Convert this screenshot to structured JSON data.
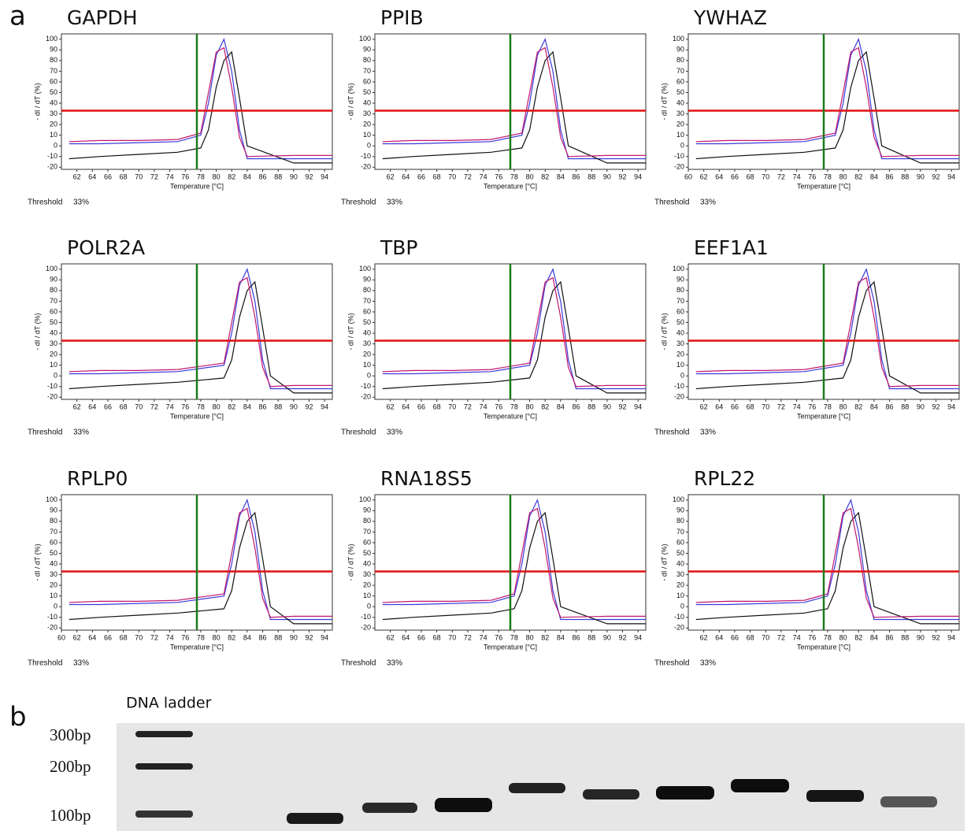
{
  "panel_labels": [
    "a",
    "b"
  ],
  "chart_data": [
    {
      "type": "line",
      "title": "GAPDH",
      "xlabel": "Temperature [°C]",
      "ylabel": "- dI / dT (%)",
      "threshold_label": "Threshold",
      "threshold": 33,
      "threshold_value_label": "33%",
      "marker_x": 77.5,
      "xlim": [
        60,
        95
      ],
      "ylim": [
        -22,
        105
      ],
      "xticks": [
        62,
        64,
        66,
        68,
        70,
        72,
        74,
        76,
        78,
        80,
        82,
        84,
        86,
        88,
        90,
        92,
        94
      ],
      "yticks": [
        -20,
        -10,
        0,
        10,
        20,
        30,
        40,
        50,
        60,
        70,
        80,
        90,
        100
      ],
      "x": [
        61,
        65,
        70,
        75,
        78,
        79,
        80,
        81,
        82,
        83,
        84,
        90,
        95
      ],
      "series": [
        {
          "color": "#3a3ad8",
          "values": [
            2,
            2,
            3,
            4,
            10,
            40,
            85,
            100,
            70,
            15,
            -12,
            -12,
            -12
          ]
        },
        {
          "color": "#111111",
          "values": [
            -12,
            -10,
            -8,
            -6,
            -2,
            15,
            55,
            80,
            88,
            45,
            0,
            -16,
            -16
          ]
        },
        {
          "color": "#c0186e",
          "values": [
            4,
            5,
            5,
            6,
            12,
            50,
            88,
            92,
            55,
            8,
            -10,
            -9,
            -9
          ]
        }
      ]
    },
    {
      "type": "line",
      "title": "PPIB",
      "xlabel": "Temperature [°C]",
      "ylabel": "- dI / dT (%)",
      "threshold_label": "Threshold",
      "threshold": 33,
      "threshold_value_label": "33%",
      "marker_x": 77.5,
      "xlim": [
        60,
        95
      ],
      "ylim": [
        -22,
        105
      ],
      "xticks": [
        62,
        64,
        66,
        68,
        70,
        72,
        74,
        76,
        78,
        80,
        82,
        84,
        86,
        88,
        90,
        92,
        94
      ],
      "yticks": [
        -20,
        -10,
        0,
        10,
        20,
        30,
        40,
        50,
        60,
        70,
        80,
        90,
        100
      ],
      "x": [
        61,
        65,
        70,
        75,
        79,
        80,
        81,
        82,
        83,
        84,
        85,
        90,
        95
      ],
      "series": [
        {
          "color": "#3a3ad8",
          "values": [
            2,
            2,
            3,
            4,
            10,
            40,
            85,
            100,
            70,
            15,
            -12,
            -12,
            -12
          ]
        },
        {
          "color": "#111111",
          "values": [
            -12,
            -10,
            -8,
            -6,
            -2,
            15,
            55,
            80,
            88,
            45,
            0,
            -16,
            -16
          ]
        },
        {
          "color": "#c0186e",
          "values": [
            4,
            5,
            5,
            6,
            12,
            50,
            88,
            92,
            55,
            8,
            -10,
            -9,
            -9
          ]
        }
      ]
    },
    {
      "type": "line",
      "title": "YWHAZ",
      "xlabel": "Temperature [°C]",
      "ylabel": "- dI / dT (%)",
      "threshold_label": "Threshold",
      "threshold": 33,
      "threshold_value_label": "33%",
      "marker_x": 77.5,
      "xlim": [
        60,
        95
      ],
      "ylim": [
        -22,
        105
      ],
      "xticks": [
        60,
        62,
        64,
        66,
        68,
        70,
        72,
        74,
        76,
        78,
        80,
        82,
        84,
        86,
        88,
        90,
        92,
        94
      ],
      "yticks": [
        -20,
        -10,
        0,
        10,
        20,
        30,
        40,
        50,
        60,
        70,
        80,
        90,
        100
      ],
      "x": [
        61,
        65,
        70,
        75,
        79,
        80,
        81,
        82,
        83,
        84,
        85,
        90,
        95
      ],
      "series": [
        {
          "color": "#3a3ad8",
          "values": [
            2,
            2,
            3,
            4,
            10,
            40,
            85,
            100,
            70,
            15,
            -12,
            -12,
            -12
          ]
        },
        {
          "color": "#111111",
          "values": [
            -12,
            -10,
            -8,
            -6,
            -2,
            15,
            55,
            80,
            88,
            45,
            0,
            -16,
            -16
          ]
        },
        {
          "color": "#c0186e",
          "values": [
            4,
            5,
            5,
            6,
            12,
            50,
            88,
            92,
            55,
            8,
            -10,
            -9,
            -9
          ]
        }
      ]
    },
    {
      "type": "line",
      "title": "POLR2A",
      "xlabel": "Temperature [°C]",
      "ylabel": "- dI / dT (%)",
      "threshold_label": "Threshold",
      "threshold": 33,
      "threshold_value_label": "33%",
      "marker_x": 77.5,
      "xlim": [
        60,
        95
      ],
      "ylim": [
        -22,
        105
      ],
      "xticks": [
        62,
        64,
        66,
        68,
        70,
        72,
        74,
        76,
        78,
        80,
        82,
        84,
        86,
        88,
        90,
        92,
        94
      ],
      "yticks": [
        -20,
        -10,
        0,
        10,
        20,
        30,
        40,
        50,
        60,
        70,
        80,
        90,
        100
      ],
      "x": [
        61,
        65,
        70,
        75,
        81,
        82,
        83,
        84,
        85,
        86,
        87,
        90,
        95
      ],
      "series": [
        {
          "color": "#3a3ad8",
          "values": [
            2,
            2,
            3,
            4,
            10,
            40,
            85,
            100,
            70,
            15,
            -12,
            -12,
            -12
          ]
        },
        {
          "color": "#111111",
          "values": [
            -12,
            -10,
            -8,
            -6,
            -2,
            15,
            55,
            80,
            88,
            45,
            0,
            -16,
            -16
          ]
        },
        {
          "color": "#c0186e",
          "values": [
            4,
            5,
            5,
            6,
            12,
            50,
            88,
            92,
            55,
            8,
            -10,
            -9,
            -9
          ]
        }
      ]
    },
    {
      "type": "line",
      "title": "TBP",
      "xlabel": "Temperature [°C]",
      "ylabel": "- dI / dT (%)",
      "threshold_label": "Threshold",
      "threshold": 33,
      "threshold_value_label": "33%",
      "marker_x": 77.5,
      "xlim": [
        60,
        95
      ],
      "ylim": [
        -22,
        105
      ],
      "xticks": [
        62,
        64,
        66,
        68,
        70,
        72,
        74,
        76,
        78,
        80,
        82,
        84,
        86,
        88,
        90,
        92,
        94
      ],
      "yticks": [
        -20,
        -10,
        0,
        10,
        20,
        30,
        40,
        50,
        60,
        70,
        80,
        90,
        100
      ],
      "x": [
        61,
        65,
        70,
        75,
        80,
        81,
        82,
        83,
        84,
        85,
        86,
        90,
        95
      ],
      "series": [
        {
          "color": "#3a3ad8",
          "values": [
            2,
            2,
            3,
            4,
            10,
            40,
            85,
            100,
            70,
            15,
            -12,
            -12,
            -12
          ]
        },
        {
          "color": "#111111",
          "values": [
            -12,
            -10,
            -8,
            -6,
            -2,
            15,
            55,
            80,
            88,
            45,
            0,
            -16,
            -16
          ]
        },
        {
          "color": "#c0186e",
          "values": [
            4,
            5,
            5,
            6,
            12,
            50,
            88,
            92,
            55,
            8,
            -10,
            -9,
            -9
          ]
        }
      ]
    },
    {
      "type": "line",
      "title": "EEF1A1",
      "xlabel": "Temperature [°C]",
      "ylabel": "- dI / dT (%)",
      "threshold_label": "Threshold",
      "threshold": 33,
      "threshold_value_label": "33%",
      "marker_x": 77.5,
      "xlim": [
        60,
        95
      ],
      "ylim": [
        -22,
        105
      ],
      "xticks": [
        62,
        64,
        66,
        68,
        70,
        72,
        74,
        76,
        78,
        80,
        82,
        84,
        86,
        88,
        90,
        92,
        94
      ],
      "yticks": [
        -20,
        -10,
        0,
        10,
        20,
        30,
        40,
        50,
        60,
        70,
        80,
        90,
        100
      ],
      "x": [
        61,
        65,
        70,
        75,
        80,
        81,
        82,
        83,
        84,
        85,
        86,
        90,
        95
      ],
      "series": [
        {
          "color": "#3a3ad8",
          "values": [
            2,
            2,
            3,
            4,
            10,
            40,
            85,
            100,
            70,
            15,
            -12,
            -12,
            -12
          ]
        },
        {
          "color": "#111111",
          "values": [
            -12,
            -10,
            -8,
            -6,
            -2,
            15,
            55,
            80,
            88,
            45,
            0,
            -16,
            -16
          ]
        },
        {
          "color": "#c0186e",
          "values": [
            4,
            5,
            5,
            6,
            12,
            50,
            88,
            92,
            55,
            8,
            -10,
            -9,
            -9
          ]
        }
      ]
    },
    {
      "type": "line",
      "title": "RPLP0",
      "xlabel": "Temperature [°C]",
      "ylabel": "- dI / dT (%)",
      "threshold_label": "Threshold",
      "threshold": 33,
      "threshold_value_label": "33%",
      "marker_x": 77.5,
      "xlim": [
        60,
        95
      ],
      "ylim": [
        -22,
        105
      ],
      "xticks": [
        60,
        62,
        64,
        66,
        68,
        70,
        72,
        74,
        76,
        78,
        80,
        82,
        84,
        86,
        88,
        90,
        92,
        94
      ],
      "yticks": [
        -20,
        -10,
        0,
        10,
        20,
        30,
        40,
        50,
        60,
        70,
        80,
        90,
        100
      ],
      "x": [
        61,
        65,
        70,
        75,
        81,
        82,
        83,
        84,
        85,
        86,
        87,
        90,
        95
      ],
      "series": [
        {
          "color": "#3a3ad8",
          "values": [
            2,
            2,
            3,
            4,
            10,
            40,
            85,
            100,
            70,
            15,
            -12,
            -12,
            -12
          ]
        },
        {
          "color": "#111111",
          "values": [
            -12,
            -10,
            -8,
            -6,
            -2,
            15,
            55,
            80,
            88,
            45,
            0,
            -16,
            -16
          ]
        },
        {
          "color": "#c0186e",
          "values": [
            4,
            5,
            5,
            6,
            12,
            50,
            88,
            92,
            55,
            8,
            -10,
            -9,
            -9
          ]
        }
      ]
    },
    {
      "type": "line",
      "title": "RNA18S5",
      "xlabel": "Temperature [°C]",
      "ylabel": "- dI / dT (%)",
      "threshold_label": "Threshold",
      "threshold": 33,
      "threshold_value_label": "33%",
      "marker_x": 77.5,
      "xlim": [
        60,
        95
      ],
      "ylim": [
        -22,
        105
      ],
      "xticks": [
        62,
        64,
        66,
        68,
        70,
        72,
        74,
        76,
        78,
        80,
        82,
        84,
        86,
        88,
        90,
        92,
        94
      ],
      "yticks": [
        -20,
        -10,
        0,
        10,
        20,
        30,
        40,
        50,
        60,
        70,
        80,
        90,
        100
      ],
      "x": [
        61,
        65,
        70,
        75,
        78,
        79,
        80,
        81,
        82,
        83,
        84,
        90,
        95
      ],
      "series": [
        {
          "color": "#3a3ad8",
          "values": [
            2,
            2,
            3,
            4,
            10,
            40,
            85,
            100,
            70,
            15,
            -12,
            -12,
            -12
          ]
        },
        {
          "color": "#111111",
          "values": [
            -12,
            -10,
            -8,
            -6,
            -2,
            15,
            55,
            80,
            88,
            45,
            0,
            -16,
            -16
          ]
        },
        {
          "color": "#c0186e",
          "values": [
            4,
            5,
            5,
            6,
            12,
            50,
            88,
            92,
            55,
            8,
            -10,
            -9,
            -9
          ]
        }
      ]
    },
    {
      "type": "line",
      "title": "RPL22",
      "xlabel": "Temperature [°C]",
      "ylabel": "- dI / dT (%)",
      "threshold_label": "Threshold",
      "threshold": 33,
      "threshold_value_label": "33%",
      "marker_x": 77.5,
      "xlim": [
        60,
        95
      ],
      "ylim": [
        -22,
        105
      ],
      "xticks": [
        62,
        64,
        66,
        68,
        70,
        72,
        74,
        76,
        78,
        80,
        82,
        84,
        86,
        88,
        90,
        92,
        94
      ],
      "yticks": [
        -20,
        -10,
        0,
        10,
        20,
        30,
        40,
        50,
        60,
        70,
        80,
        90,
        100
      ],
      "x": [
        61,
        65,
        70,
        75,
        78,
        79,
        80,
        81,
        82,
        83,
        84,
        90,
        95
      ],
      "series": [
        {
          "color": "#3a3ad8",
          "values": [
            2,
            2,
            3,
            4,
            10,
            40,
            85,
            100,
            70,
            15,
            -12,
            -12,
            -12
          ]
        },
        {
          "color": "#111111",
          "values": [
            -12,
            -10,
            -8,
            -6,
            -2,
            15,
            55,
            80,
            88,
            45,
            0,
            -16,
            -16
          ]
        },
        {
          "color": "#c0186e",
          "values": [
            4,
            5,
            5,
            6,
            12,
            50,
            88,
            92,
            55,
            8,
            -10,
            -9,
            -9
          ]
        }
      ]
    }
  ],
  "gel": {
    "ladder_title": "DNA ladder",
    "ladder_labels": [
      "300bp",
      "200bp",
      "100bp"
    ]
  }
}
